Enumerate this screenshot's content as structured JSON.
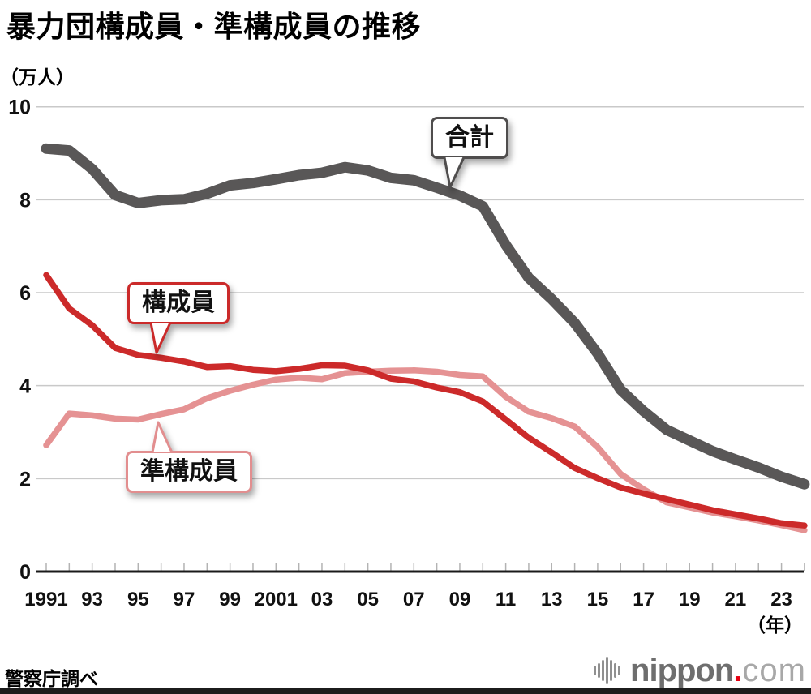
{
  "title": "暴力団構成員・準構成員の推移",
  "callouts": {
    "total": "合計",
    "members": "構成員",
    "quasi": "準構成員"
  },
  "footer": {
    "source": "警察庁調べ",
    "logo": {
      "icon": "soundwave-bars-icon",
      "name": "nippon",
      "dot": ".",
      "tld": "com"
    }
  },
  "colors": {
    "total": "#595757",
    "members": "#cc2a2a",
    "quasi": "#e59293",
    "grid": "#c9c9c9",
    "tick": "#b3b3b3",
    "axis": "#1a1a1a",
    "text": "#111111",
    "logo_gray": "#6e6e6e",
    "logo_light": "#a8a8a8",
    "logo_dot": "#e60012",
    "logo_bars": "#909090"
  },
  "chart_data": {
    "type": "line",
    "title": "暴力団構成員・準構成員の推移",
    "xlabel": "（年）",
    "ylabel": "（万人）",
    "ylim": [
      0,
      10
    ],
    "grid": true,
    "legend_position": "inline-callouts",
    "x": [
      1991,
      1992,
      1993,
      1994,
      1995,
      1996,
      1997,
      1998,
      1999,
      2000,
      2001,
      2002,
      2003,
      2004,
      2005,
      2006,
      2007,
      2008,
      2009,
      2010,
      2011,
      2012,
      2013,
      2014,
      2015,
      2016,
      2017,
      2018,
      2019,
      2020,
      2021,
      2022,
      2023,
      2024
    ],
    "series": [
      {
        "name": "合計",
        "color": "#595757",
        "width": 13,
        "values": [
          9.1,
          9.06,
          8.66,
          8.1,
          7.93,
          7.99,
          8.01,
          8.13,
          8.31,
          8.36,
          8.44,
          8.53,
          8.58,
          8.7,
          8.63,
          8.47,
          8.42,
          8.26,
          8.09,
          7.86,
          7.03,
          6.32,
          5.86,
          5.35,
          4.69,
          3.91,
          3.45,
          3.05,
          2.82,
          2.59,
          2.41,
          2.24,
          2.04,
          1.88
        ]
      },
      {
        "name": "準構成員",
        "color": "#e59293",
        "width": 7.5,
        "values": [
          2.72,
          3.4,
          3.36,
          3.29,
          3.27,
          3.39,
          3.49,
          3.73,
          3.89,
          4.02,
          4.13,
          4.17,
          4.14,
          4.27,
          4.3,
          4.32,
          4.33,
          4.3,
          4.23,
          4.2,
          3.76,
          3.44,
          3.3,
          3.12,
          2.68,
          2.1,
          1.77,
          1.49,
          1.38,
          1.27,
          1.19,
          1.1,
          1.0,
          0.89
        ]
      },
      {
        "name": "構成員",
        "color": "#cc2a2a",
        "width": 7.5,
        "values": [
          6.38,
          5.66,
          5.3,
          4.81,
          4.66,
          4.6,
          4.52,
          4.4,
          4.42,
          4.34,
          4.31,
          4.36,
          4.44,
          4.43,
          4.33,
          4.15,
          4.09,
          3.96,
          3.86,
          3.66,
          3.27,
          2.88,
          2.56,
          2.23,
          2.01,
          1.81,
          1.68,
          1.56,
          1.44,
          1.32,
          1.23,
          1.14,
          1.04,
          0.99
        ]
      }
    ],
    "y_ticks": [
      0,
      2,
      4,
      6,
      8,
      10
    ],
    "y_tick_labels": [
      "0",
      "2",
      "4",
      "6",
      "8",
      "10"
    ],
    "x_ticks": [
      {
        "label": "1991",
        "year": 1991
      },
      {
        "label": "93",
        "year": 1993
      },
      {
        "label": "95",
        "year": 1995
      },
      {
        "label": "97",
        "year": 1997
      },
      {
        "label": "99",
        "year": 1999
      },
      {
        "label": "2001",
        "year": 2001
      },
      {
        "label": "03",
        "year": 2003
      },
      {
        "label": "05",
        "year": 2005
      },
      {
        "label": "07",
        "year": 2007
      },
      {
        "label": "09",
        "year": 2009
      },
      {
        "label": "11",
        "year": 2011
      },
      {
        "label": "13",
        "year": 2013
      },
      {
        "label": "15",
        "year": 2015
      },
      {
        "label": "17",
        "year": 2017
      },
      {
        "label": "19",
        "year": 2019
      },
      {
        "label": "21",
        "year": 2021
      },
      {
        "label": "23",
        "year": 2023
      }
    ]
  }
}
